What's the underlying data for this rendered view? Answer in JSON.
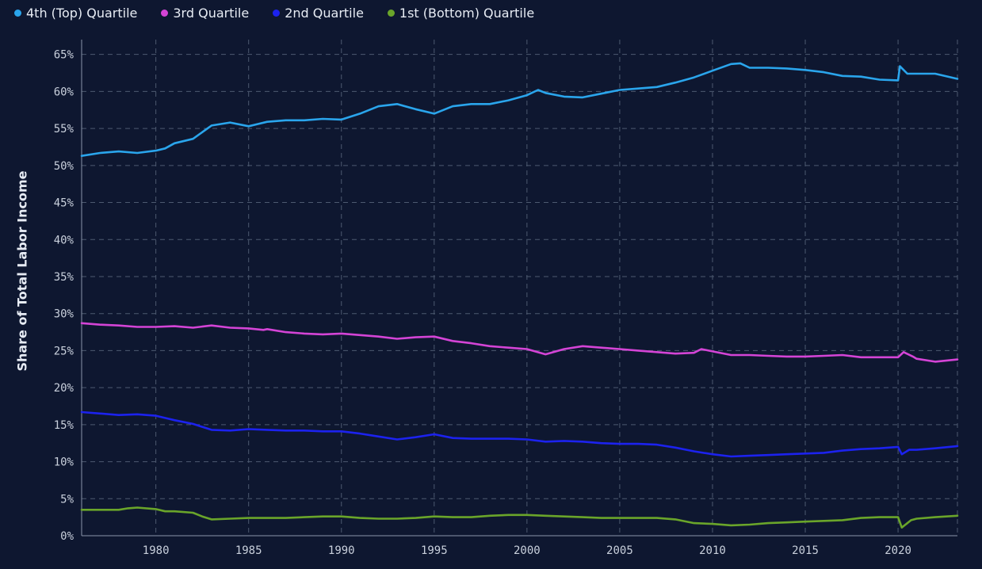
{
  "legend": {
    "items": [
      {
        "label": "4th (Top) Quartile",
        "color": "#2aa5ec"
      },
      {
        "label": "3rd Quartile",
        "color": "#d444d6"
      },
      {
        "label": "2nd Quartile",
        "color": "#1c22ee"
      },
      {
        "label": "1st (Bottom) Quartile",
        "color": "#6aa52a"
      }
    ]
  },
  "chart_data": {
    "type": "line",
    "title": "",
    "xlabel": "",
    "ylabel": "Share of Total Labor Income",
    "xlim": [
      1976,
      2023.2
    ],
    "ylim": [
      0,
      67
    ],
    "y_ticks": [
      0,
      5,
      10,
      15,
      20,
      25,
      30,
      35,
      40,
      45,
      50,
      55,
      60,
      65
    ],
    "y_tick_labels": [
      "0%",
      "5%",
      "10%",
      "15%",
      "20%",
      "25%",
      "30%",
      "35%",
      "40%",
      "45%",
      "50%",
      "55%",
      "60%",
      "65%"
    ],
    "x_ticks": [
      1980,
      1985,
      1990,
      1995,
      2000,
      2005,
      2010,
      2015,
      2020
    ],
    "x_tick_labels": [
      "1980",
      "1985",
      "1990",
      "1995",
      "2000",
      "2005",
      "2010",
      "2015",
      "2020"
    ],
    "grid": true,
    "legend_position": "top-left",
    "series": [
      {
        "name": "4th (Top) Quartile",
        "color": "#2aa5ec",
        "points": [
          [
            1976,
            51.3
          ],
          [
            1977,
            51.7
          ],
          [
            1978,
            51.9
          ],
          [
            1979,
            51.7
          ],
          [
            1980,
            52.0
          ],
          [
            1980.5,
            52.3
          ],
          [
            1981,
            53.0
          ],
          [
            1982,
            53.6
          ],
          [
            1983,
            55.4
          ],
          [
            1984,
            55.8
          ],
          [
            1985,
            55.3
          ],
          [
            1985.5,
            55.6
          ],
          [
            1986,
            55.9
          ],
          [
            1987,
            56.1
          ],
          [
            1988,
            56.1
          ],
          [
            1989,
            56.3
          ],
          [
            1990,
            56.2
          ],
          [
            1991,
            57.0
          ],
          [
            1992,
            58.0
          ],
          [
            1993,
            58.3
          ],
          [
            1994,
            57.6
          ],
          [
            1995,
            57.0
          ],
          [
            1996,
            58.0
          ],
          [
            1997,
            58.3
          ],
          [
            1998,
            58.3
          ],
          [
            1999,
            58.8
          ],
          [
            2000,
            59.5
          ],
          [
            2000.6,
            60.2
          ],
          [
            2001,
            59.8
          ],
          [
            2002,
            59.3
          ],
          [
            2003,
            59.2
          ],
          [
            2004,
            59.7
          ],
          [
            2005,
            60.2
          ],
          [
            2006,
            60.4
          ],
          [
            2007,
            60.6
          ],
          [
            2008,
            61.2
          ],
          [
            2009,
            61.9
          ],
          [
            2010,
            62.8
          ],
          [
            2011,
            63.7
          ],
          [
            2011.5,
            63.8
          ],
          [
            2012,
            63.2
          ],
          [
            2013,
            63.2
          ],
          [
            2014,
            63.1
          ],
          [
            2015,
            62.9
          ],
          [
            2016,
            62.6
          ],
          [
            2017,
            62.1
          ],
          [
            2018,
            62.0
          ],
          [
            2019,
            61.6
          ],
          [
            2020,
            61.5
          ],
          [
            2020.1,
            63.4
          ],
          [
            2020.5,
            62.4
          ],
          [
            2021,
            62.4
          ],
          [
            2022,
            62.4
          ],
          [
            2023.2,
            61.7
          ]
        ]
      },
      {
        "name": "3rd Quartile",
        "color": "#d444d6",
        "points": [
          [
            1976,
            28.7
          ],
          [
            1977,
            28.5
          ],
          [
            1978,
            28.4
          ],
          [
            1979,
            28.2
          ],
          [
            1980,
            28.2
          ],
          [
            1981,
            28.3
          ],
          [
            1982,
            28.1
          ],
          [
            1983,
            28.4
          ],
          [
            1984,
            28.1
          ],
          [
            1985,
            28.0
          ],
          [
            1985.8,
            27.8
          ],
          [
            1986,
            27.9
          ],
          [
            1987,
            27.5
          ],
          [
            1988,
            27.3
          ],
          [
            1989,
            27.2
          ],
          [
            1990,
            27.3
          ],
          [
            1991,
            27.1
          ],
          [
            1992,
            26.9
          ],
          [
            1993,
            26.6
          ],
          [
            1994,
            26.8
          ],
          [
            1995,
            26.9
          ],
          [
            1996,
            26.3
          ],
          [
            1997,
            26.0
          ],
          [
            1998,
            25.6
          ],
          [
            1999,
            25.4
          ],
          [
            2000,
            25.2
          ],
          [
            2001,
            24.5
          ],
          [
            2002,
            25.2
          ],
          [
            2003,
            25.6
          ],
          [
            2004,
            25.4
          ],
          [
            2005,
            25.2
          ],
          [
            2006,
            25.0
          ],
          [
            2007,
            24.8
          ],
          [
            2008,
            24.6
          ],
          [
            2009,
            24.7
          ],
          [
            2009.4,
            25.2
          ],
          [
            2010,
            24.9
          ],
          [
            2011,
            24.4
          ],
          [
            2012,
            24.4
          ],
          [
            2013,
            24.3
          ],
          [
            2014,
            24.2
          ],
          [
            2015,
            24.2
          ],
          [
            2016,
            24.3
          ],
          [
            2017,
            24.4
          ],
          [
            2018,
            24.1
          ],
          [
            2019,
            24.1
          ],
          [
            2020,
            24.1
          ],
          [
            2020.3,
            24.8
          ],
          [
            2020.8,
            24.2
          ],
          [
            2021,
            23.9
          ],
          [
            2022,
            23.5
          ],
          [
            2023.2,
            23.8
          ]
        ]
      },
      {
        "name": "2nd Quartile",
        "color": "#1c22ee",
        "points": [
          [
            1976,
            16.7
          ],
          [
            1977,
            16.5
          ],
          [
            1978,
            16.3
          ],
          [
            1979,
            16.4
          ],
          [
            1980,
            16.2
          ],
          [
            1980.5,
            15.9
          ],
          [
            1981,
            15.6
          ],
          [
            1982,
            15.1
          ],
          [
            1983,
            14.3
          ],
          [
            1984,
            14.2
          ],
          [
            1985,
            14.4
          ],
          [
            1986,
            14.3
          ],
          [
            1987,
            14.2
          ],
          [
            1988,
            14.2
          ],
          [
            1989,
            14.1
          ],
          [
            1990,
            14.1
          ],
          [
            1991,
            13.8
          ],
          [
            1992,
            13.4
          ],
          [
            1993,
            13.0
          ],
          [
            1994,
            13.3
          ],
          [
            1995,
            13.7
          ],
          [
            1996,
            13.2
          ],
          [
            1997,
            13.1
          ],
          [
            1998,
            13.1
          ],
          [
            1999,
            13.1
          ],
          [
            2000,
            13.0
          ],
          [
            2001,
            12.7
          ],
          [
            2002,
            12.8
          ],
          [
            2003,
            12.7
          ],
          [
            2004,
            12.5
          ],
          [
            2005,
            12.4
          ],
          [
            2006,
            12.4
          ],
          [
            2007,
            12.3
          ],
          [
            2008,
            11.9
          ],
          [
            2009,
            11.4
          ],
          [
            2010,
            11.0
          ],
          [
            2011,
            10.7
          ],
          [
            2012,
            10.8
          ],
          [
            2013,
            10.9
          ],
          [
            2014,
            11.0
          ],
          [
            2015,
            11.1
          ],
          [
            2016,
            11.2
          ],
          [
            2017,
            11.5
          ],
          [
            2018,
            11.7
          ],
          [
            2019,
            11.8
          ],
          [
            2020,
            12.0
          ],
          [
            2020.2,
            11.0
          ],
          [
            2020.6,
            11.6
          ],
          [
            2021,
            11.6
          ],
          [
            2022,
            11.8
          ],
          [
            2023.2,
            12.1
          ]
        ]
      },
      {
        "name": "1st (Bottom) Quartile",
        "color": "#6aa52a",
        "points": [
          [
            1976,
            3.5
          ],
          [
            1977,
            3.5
          ],
          [
            1978,
            3.5
          ],
          [
            1978.5,
            3.7
          ],
          [
            1979,
            3.8
          ],
          [
            1980,
            3.6
          ],
          [
            1980.5,
            3.3
          ],
          [
            1981,
            3.3
          ],
          [
            1982,
            3.1
          ],
          [
            1982.5,
            2.6
          ],
          [
            1983,
            2.2
          ],
          [
            1984,
            2.3
          ],
          [
            1985,
            2.4
          ],
          [
            1986,
            2.4
          ],
          [
            1987,
            2.4
          ],
          [
            1988,
            2.5
          ],
          [
            1989,
            2.6
          ],
          [
            1990,
            2.6
          ],
          [
            1991,
            2.4
          ],
          [
            1992,
            2.3
          ],
          [
            1993,
            2.3
          ],
          [
            1994,
            2.4
          ],
          [
            1995,
            2.6
          ],
          [
            1996,
            2.5
          ],
          [
            1997,
            2.5
          ],
          [
            1998,
            2.7
          ],
          [
            1999,
            2.8
          ],
          [
            2000,
            2.8
          ],
          [
            2001,
            2.7
          ],
          [
            2002,
            2.6
          ],
          [
            2003,
            2.5
          ],
          [
            2004,
            2.4
          ],
          [
            2005,
            2.4
          ],
          [
            2006,
            2.4
          ],
          [
            2007,
            2.4
          ],
          [
            2008,
            2.2
          ],
          [
            2009,
            1.7
          ],
          [
            2010,
            1.6
          ],
          [
            2011,
            1.4
          ],
          [
            2012,
            1.5
          ],
          [
            2013,
            1.7
          ],
          [
            2014,
            1.8
          ],
          [
            2015,
            1.9
          ],
          [
            2016,
            2.0
          ],
          [
            2017,
            2.1
          ],
          [
            2018,
            2.4
          ],
          [
            2019,
            2.5
          ],
          [
            2020,
            2.5
          ],
          [
            2020.2,
            1.1
          ],
          [
            2020.7,
            2.1
          ],
          [
            2021,
            2.3
          ],
          [
            2022,
            2.5
          ],
          [
            2023.2,
            2.7
          ]
        ]
      }
    ]
  }
}
